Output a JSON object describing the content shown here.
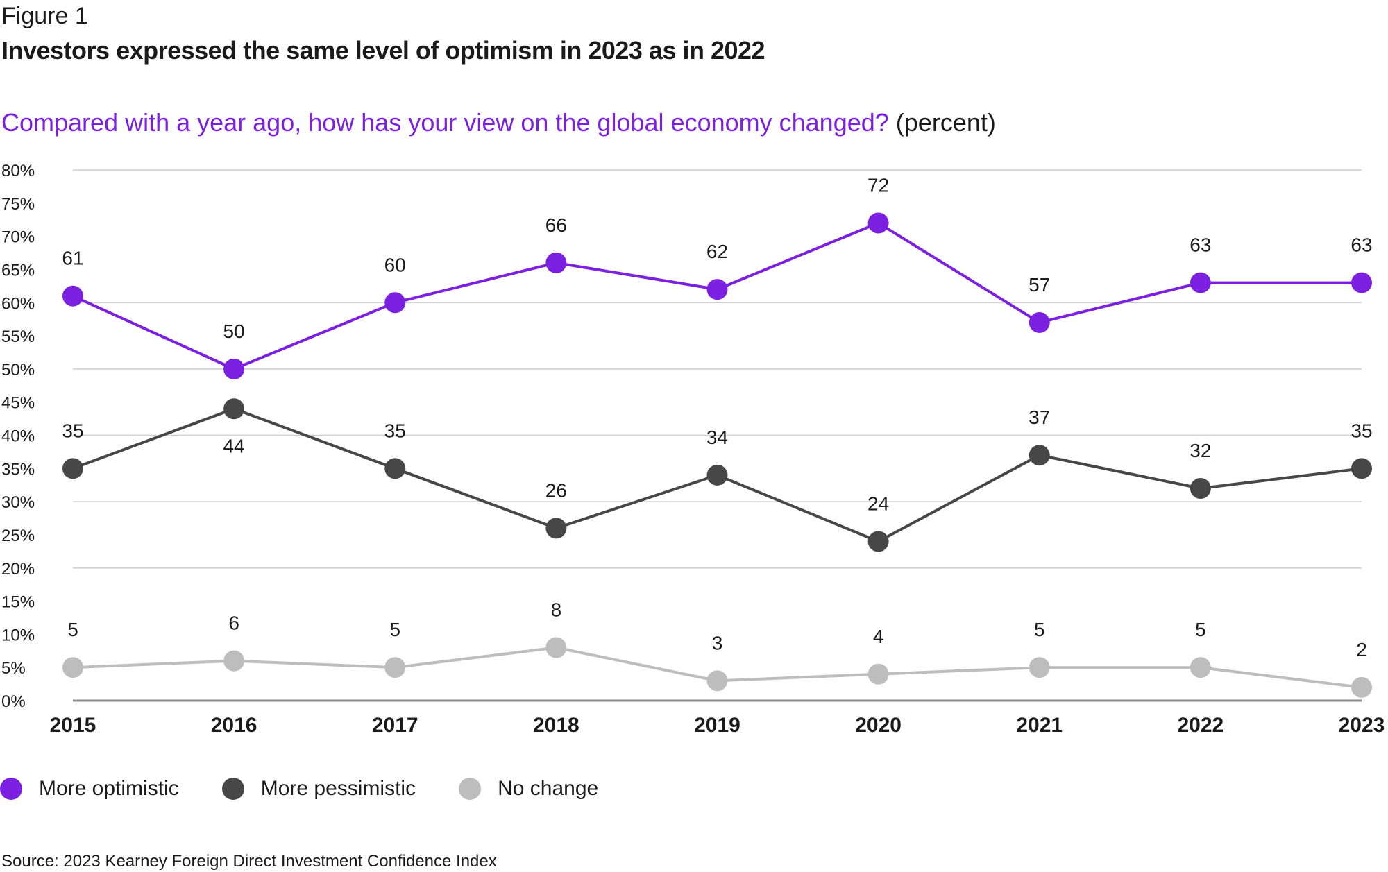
{
  "figure_label": "Figure 1",
  "title": "Investors expressed the same level of optimism in 2023 as in 2022",
  "question": "Compared with a year ago, how has your view on the global economy changed?",
  "unit_label": "(percent)",
  "source": "Source: 2023 Kearney Foreign Direct Investment Confidence Index",
  "chart_data": {
    "type": "line",
    "title": "Compared with a year ago, how has your view on the global economy changed? (percent)",
    "x": [
      "2015",
      "2016",
      "2017",
      "2018",
      "2019",
      "2020",
      "2021",
      "2022",
      "2023"
    ],
    "ylim": [
      0,
      80
    ],
    "yticks": [
      "0%",
      "5%",
      "10%",
      "15%",
      "20%",
      "25%",
      "30%",
      "35%",
      "40%",
      "45%",
      "50%",
      "55%",
      "60%",
      "65%",
      "70%",
      "75%",
      "80%"
    ],
    "ytick_values": [
      0,
      5,
      10,
      15,
      20,
      25,
      30,
      35,
      40,
      45,
      50,
      55,
      60,
      65,
      70,
      75,
      80
    ],
    "grid_values": [
      0,
      20,
      30,
      40,
      50,
      60,
      80
    ],
    "legend_position": "bottom-left",
    "series": [
      {
        "name": "More optimistic",
        "color": "#7b1fe0",
        "values": [
          61,
          50,
          60,
          66,
          62,
          72,
          57,
          63,
          63
        ],
        "labels": [
          "61",
          "50",
          "60",
          "66",
          "62",
          "72",
          "57",
          "63",
          "63"
        ],
        "label_side": [
          "above",
          "above",
          "above",
          "above",
          "above",
          "above",
          "above",
          "above",
          "above"
        ]
      },
      {
        "name": "More pessimistic",
        "color": "#474747",
        "values": [
          35,
          44,
          35,
          26,
          34,
          24,
          37,
          32,
          35
        ],
        "labels": [
          "35",
          "44",
          "35",
          "26",
          "34",
          "24",
          "37",
          "32",
          "35"
        ],
        "label_side": [
          "above",
          "below",
          "above",
          "above",
          "above",
          "above",
          "above",
          "above",
          "above"
        ]
      },
      {
        "name": "No change",
        "color": "#bdbdbd",
        "values": [
          5,
          6,
          5,
          8,
          3,
          4,
          5,
          5,
          2
        ],
        "labels": [
          "5",
          "6",
          "5",
          "8",
          "3",
          "4",
          "5",
          "5",
          "2"
        ],
        "label_side": [
          "above",
          "above",
          "above",
          "above",
          "above",
          "above",
          "above",
          "above",
          "above"
        ]
      }
    ]
  }
}
